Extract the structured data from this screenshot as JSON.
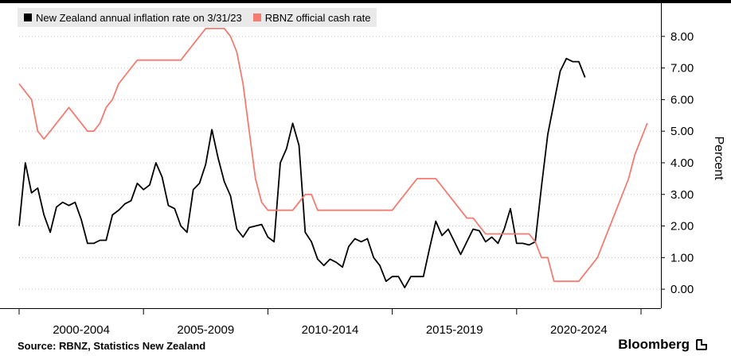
{
  "chart_data": {
    "type": "line",
    "ylabel": "Percent",
    "ylim": [
      -0.6,
      8.9
    ],
    "yticks": [
      0,
      1,
      2,
      3,
      4,
      5,
      6,
      7,
      8
    ],
    "ytick_labels": [
      "0.00",
      "1.00",
      "2.00",
      "3.00",
      "4.00",
      "5.00",
      "6.00",
      "7.00",
      "8.00"
    ],
    "xlim": [
      1999.0,
      2024.8
    ],
    "xtick_labels": [
      {
        "label": "2000-2004",
        "pos": 2001.5
      },
      {
        "label": "2005-2009",
        "pos": 2006.5
      },
      {
        "label": "2010-2014",
        "pos": 2011.5
      },
      {
        "label": "2015-2019",
        "pos": 2016.5
      },
      {
        "label": "2020-2024",
        "pos": 2021.5
      }
    ],
    "x_major_ticks": [
      1999,
      2004,
      2009,
      2014,
      2019,
      2024
    ],
    "legend_position": "top-left",
    "series": [
      {
        "name": "New Zealand annual inflation rate on 3/31/23",
        "color": "#000000",
        "points": [
          [
            1999.0,
            2.0
          ],
          [
            1999.25,
            4.0
          ],
          [
            1999.5,
            3.05
          ],
          [
            1999.75,
            3.2
          ],
          [
            2000.0,
            2.35
          ],
          [
            2000.25,
            1.8
          ],
          [
            2000.5,
            2.6
          ],
          [
            2000.75,
            2.75
          ],
          [
            2001.0,
            2.65
          ],
          [
            2001.25,
            2.75
          ],
          [
            2001.5,
            2.2
          ],
          [
            2001.75,
            1.45
          ],
          [
            2002.0,
            1.45
          ],
          [
            2002.25,
            1.55
          ],
          [
            2002.5,
            1.55
          ],
          [
            2002.75,
            2.35
          ],
          [
            2003.0,
            2.5
          ],
          [
            2003.25,
            2.7
          ],
          [
            2003.5,
            2.8
          ],
          [
            2003.75,
            3.35
          ],
          [
            2004.0,
            3.15
          ],
          [
            2004.25,
            3.3
          ],
          [
            2004.5,
            4.0
          ],
          [
            2004.75,
            3.55
          ],
          [
            2005.0,
            2.65
          ],
          [
            2005.25,
            2.55
          ],
          [
            2005.5,
            2.0
          ],
          [
            2005.75,
            1.8
          ],
          [
            2006.0,
            3.15
          ],
          [
            2006.25,
            3.35
          ],
          [
            2006.5,
            3.95
          ],
          [
            2006.75,
            5.05
          ],
          [
            2007.0,
            4.15
          ],
          [
            2007.25,
            3.4
          ],
          [
            2007.5,
            2.95
          ],
          [
            2007.75,
            1.9
          ],
          [
            2008.0,
            1.65
          ],
          [
            2008.25,
            1.95
          ],
          [
            2008.5,
            2.0
          ],
          [
            2008.75,
            2.05
          ],
          [
            2009.0,
            1.65
          ],
          [
            2009.25,
            1.5
          ],
          [
            2009.5,
            4.0
          ],
          [
            2009.75,
            4.45
          ],
          [
            2010.0,
            5.25
          ],
          [
            2010.25,
            4.55
          ],
          [
            2010.5,
            1.8
          ],
          [
            2010.75,
            1.5
          ],
          [
            2011.0,
            0.95
          ],
          [
            2011.25,
            0.75
          ],
          [
            2011.5,
            0.95
          ],
          [
            2011.75,
            0.85
          ],
          [
            2012.0,
            0.7
          ],
          [
            2012.25,
            1.35
          ],
          [
            2012.5,
            1.6
          ],
          [
            2012.75,
            1.5
          ],
          [
            2013.0,
            1.6
          ],
          [
            2013.25,
            1.0
          ],
          [
            2013.5,
            0.75
          ],
          [
            2013.75,
            0.25
          ],
          [
            2014.0,
            0.4
          ],
          [
            2014.25,
            0.4
          ],
          [
            2014.5,
            0.05
          ],
          [
            2014.75,
            0.4
          ],
          [
            2015.0,
            0.4
          ],
          [
            2015.25,
            0.4
          ],
          [
            2015.5,
            1.3
          ],
          [
            2015.75,
            2.15
          ],
          [
            2016.0,
            1.7
          ],
          [
            2016.25,
            1.9
          ],
          [
            2016.5,
            1.5
          ],
          [
            2016.75,
            1.1
          ],
          [
            2017.0,
            1.5
          ],
          [
            2017.25,
            1.9
          ],
          [
            2017.5,
            1.85
          ],
          [
            2017.75,
            1.5
          ],
          [
            2018.0,
            1.65
          ],
          [
            2018.25,
            1.45
          ],
          [
            2018.5,
            1.9
          ],
          [
            2018.75,
            2.55
          ],
          [
            2019.0,
            1.45
          ],
          [
            2019.25,
            1.45
          ],
          [
            2019.5,
            1.4
          ],
          [
            2019.75,
            1.5
          ],
          [
            2020.0,
            3.25
          ],
          [
            2020.25,
            4.9
          ],
          [
            2020.5,
            5.9
          ],
          [
            2020.75,
            6.9
          ],
          [
            2021.0,
            7.3
          ],
          [
            2021.25,
            7.2
          ],
          [
            2021.5,
            7.2
          ],
          [
            2021.75,
            6.7
          ]
        ]
      },
      {
        "name": "RBNZ official cash rate",
        "color": "#f47b72",
        "points": [
          [
            1999.0,
            6.5
          ],
          [
            1999.25,
            6.25
          ],
          [
            1999.5,
            6.0
          ],
          [
            1999.75,
            5.0
          ],
          [
            2000.0,
            4.75
          ],
          [
            2000.25,
            5.0
          ],
          [
            2000.5,
            5.25
          ],
          [
            2000.75,
            5.5
          ],
          [
            2001.0,
            5.75
          ],
          [
            2001.25,
            5.5
          ],
          [
            2001.5,
            5.25
          ],
          [
            2001.75,
            5.0
          ],
          [
            2002.0,
            5.0
          ],
          [
            2002.25,
            5.25
          ],
          [
            2002.5,
            5.75
          ],
          [
            2002.75,
            6.0
          ],
          [
            2003.0,
            6.5
          ],
          [
            2003.25,
            6.75
          ],
          [
            2003.5,
            7.0
          ],
          [
            2003.75,
            7.25
          ],
          [
            2004.0,
            7.25
          ],
          [
            2004.5,
            7.25
          ],
          [
            2005.0,
            7.25
          ],
          [
            2005.5,
            7.25
          ],
          [
            2005.75,
            7.5
          ],
          [
            2006.0,
            7.75
          ],
          [
            2006.25,
            8.0
          ],
          [
            2006.5,
            8.25
          ],
          [
            2007.0,
            8.25
          ],
          [
            2007.25,
            8.25
          ],
          [
            2007.5,
            8.0
          ],
          [
            2007.75,
            7.5
          ],
          [
            2008.0,
            6.5
          ],
          [
            2008.25,
            5.0
          ],
          [
            2008.5,
            3.5
          ],
          [
            2008.75,
            2.75
          ],
          [
            2009.0,
            2.5
          ],
          [
            2009.5,
            2.5
          ],
          [
            2010.0,
            2.5
          ],
          [
            2010.25,
            2.75
          ],
          [
            2010.5,
            3.0
          ],
          [
            2010.75,
            3.0
          ],
          [
            2011.0,
            2.5
          ],
          [
            2011.5,
            2.5
          ],
          [
            2012.0,
            2.5
          ],
          [
            2013.0,
            2.5
          ],
          [
            2014.0,
            2.5
          ],
          [
            2014.25,
            2.75
          ],
          [
            2014.5,
            3.0
          ],
          [
            2014.75,
            3.25
          ],
          [
            2015.0,
            3.5
          ],
          [
            2015.25,
            3.5
          ],
          [
            2015.5,
            3.5
          ],
          [
            2015.75,
            3.5
          ],
          [
            2016.0,
            3.25
          ],
          [
            2016.25,
            3.0
          ],
          [
            2016.5,
            2.75
          ],
          [
            2016.75,
            2.5
          ],
          [
            2017.0,
            2.25
          ],
          [
            2017.25,
            2.25
          ],
          [
            2017.5,
            2.0
          ],
          [
            2017.75,
            1.75
          ],
          [
            2018.0,
            1.75
          ],
          [
            2018.5,
            1.75
          ],
          [
            2019.0,
            1.75
          ],
          [
            2019.5,
            1.75
          ],
          [
            2019.75,
            1.5
          ],
          [
            2020.0,
            1.0
          ],
          [
            2020.25,
            1.0
          ],
          [
            2020.5,
            0.25
          ],
          [
            2021.0,
            0.25
          ],
          [
            2021.5,
            0.25
          ],
          [
            2021.75,
            0.5
          ],
          [
            2022.0,
            0.75
          ],
          [
            2022.25,
            1.0
          ],
          [
            2022.5,
            1.5
          ],
          [
            2022.75,
            2.0
          ],
          [
            2023.0,
            2.5
          ],
          [
            2023.25,
            3.0
          ],
          [
            2023.5,
            3.5
          ],
          [
            2023.75,
            4.25
          ],
          [
            2024.0,
            4.75
          ],
          [
            2024.25,
            5.25
          ]
        ]
      }
    ]
  },
  "legend": {
    "inflation_label": "New Zealand annual inflation rate on 3/31/23",
    "cash_rate_label": "RBNZ official cash rate"
  },
  "footer": {
    "source": "Source: RBNZ, Statistics New Zealand",
    "brand": "Bloomberg"
  },
  "colors": {
    "inflation": "#000000",
    "cash_rate": "#f47b72",
    "gridline": "#c8c8c8",
    "legend_bg": "#e9e9e9"
  }
}
